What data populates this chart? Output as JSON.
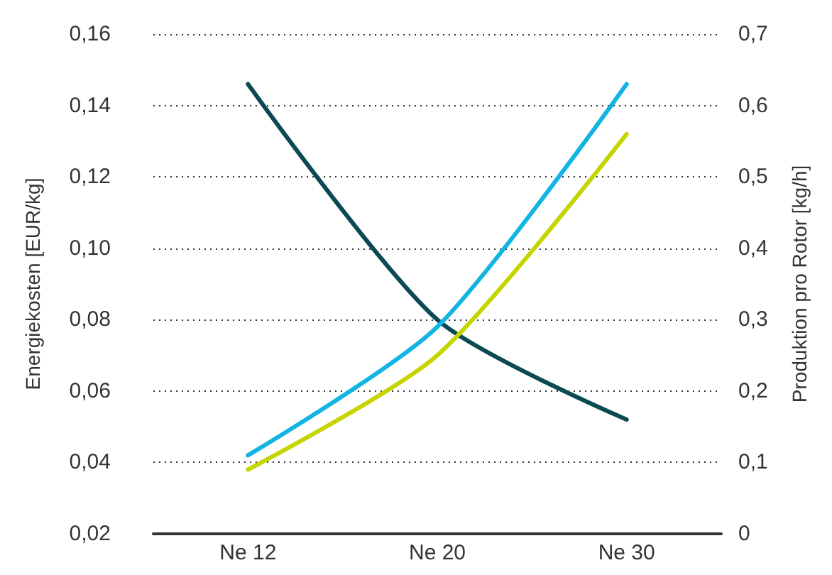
{
  "chart_data": {
    "type": "line",
    "categories": [
      "Ne 12",
      "Ne 20",
      "Ne 30"
    ],
    "series": [
      {
        "color": "#0b4a52",
        "values": [
          0.146,
          0.08,
          0.052
        ]
      },
      {
        "color": "#12b4e4",
        "values": [
          0.11,
          0.29,
          0.63
        ],
        "axis": "y2"
      },
      {
        "color": "#c6d400",
        "values": [
          0.09,
          0.25,
          0.56
        ],
        "axis": "y2"
      }
    ],
    "ylabel": "Energiekosten [EUR/kg]",
    "y2label": "Produktion pro Rotor [kg/h]",
    "ylim": [
      0.02,
      0.16
    ],
    "yticks": [
      {
        "value": 0.02,
        "label": "0,02"
      },
      {
        "value": 0.04,
        "label": "0,04"
      },
      {
        "value": 0.06,
        "label": "0,06"
      },
      {
        "value": 0.08,
        "label": "0,08"
      },
      {
        "value": 0.1,
        "label": "0,10"
      },
      {
        "value": 0.12,
        "label": "0,12"
      },
      {
        "value": 0.14,
        "label": "0,14"
      },
      {
        "value": 0.16,
        "label": "0,16"
      }
    ],
    "y2lim": [
      0,
      0.7
    ],
    "y2ticks": [
      0,
      {
        "value": 0.1,
        "label": "0,1"
      },
      {
        "value": 0.2,
        "label": "0,2"
      },
      {
        "value": 0.3,
        "label": "0,3"
      },
      {
        "value": 0.4,
        "label": "0,4"
      },
      {
        "value": 0.5,
        "label": "0,5"
      },
      {
        "value": 0.6,
        "label": "0,6"
      },
      {
        "value": 0.7,
        "label": "0,7"
      }
    ],
    "grid": "y",
    "marker": "none",
    "line_style": "solid"
  }
}
